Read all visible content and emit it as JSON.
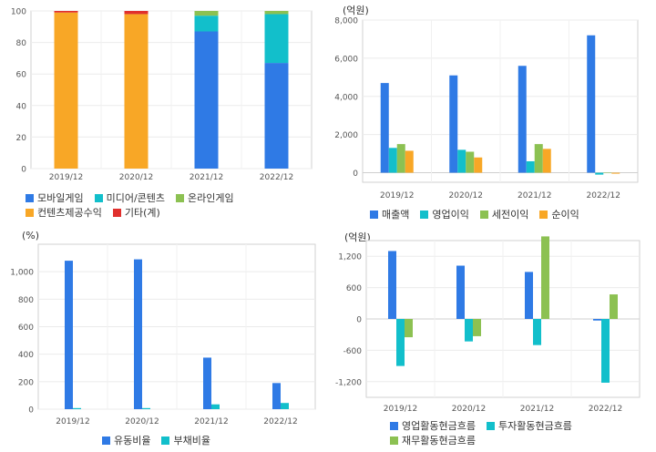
{
  "colors": {
    "blue": "#2f7ae5",
    "cyan": "#12bfcb",
    "green": "#8cc152",
    "orange": "#f8a726",
    "red": "#e0302d"
  },
  "chart_data": [
    {
      "id": "chart1",
      "type": "bar",
      "stacked": true,
      "unit": "",
      "categories": [
        "2019/12",
        "2020/12",
        "2021/12",
        "2022/12"
      ],
      "ylim": [
        0,
        100
      ],
      "yticks": [
        0,
        20,
        40,
        60,
        80,
        100
      ],
      "ytick_labels": [
        "0",
        "20",
        "40",
        "60",
        "80",
        "100"
      ],
      "series": [
        {
          "name": "모바일게임",
          "color": "blue",
          "values": [
            0,
            0,
            87,
            67
          ]
        },
        {
          "name": "미디어/콘텐츠",
          "color": "cyan",
          "values": [
            0,
            0,
            10,
            31
          ]
        },
        {
          "name": "온라인게임",
          "color": "green",
          "values": [
            0,
            0,
            3,
            2
          ]
        },
        {
          "name": "컨텐츠제공수익",
          "color": "orange",
          "values": [
            99,
            98,
            0,
            0
          ]
        },
        {
          "name": "기타(계)",
          "color": "red",
          "values": [
            1,
            2,
            0,
            0
          ]
        }
      ],
      "legend_rows": [
        [
          0,
          1,
          2
        ],
        [
          3,
          4
        ]
      ]
    },
    {
      "id": "chart2",
      "type": "bar",
      "unit": "(억원)",
      "categories": [
        "2019/12",
        "2020/12",
        "2021/12",
        "2022/12"
      ],
      "ylim": [
        -500,
        8000
      ],
      "yticks": [
        0,
        2000,
        4000,
        6000,
        8000
      ],
      "ytick_labels": [
        "0",
        "2,000",
        "4,000",
        "6,000",
        "8,000"
      ],
      "series": [
        {
          "name": "매출액",
          "color": "blue",
          "values": [
            4700,
            5100,
            5600,
            7200
          ]
        },
        {
          "name": "영업이익",
          "color": "cyan",
          "values": [
            1300,
            1200,
            600,
            -100
          ]
        },
        {
          "name": "세전이익",
          "color": "green",
          "values": [
            1500,
            1100,
            1500,
            0
          ]
        },
        {
          "name": "순이익",
          "color": "orange",
          "values": [
            1150,
            800,
            1250,
            -50
          ]
        }
      ],
      "legend_rows": [
        [
          0,
          1,
          2,
          3
        ]
      ]
    },
    {
      "id": "chart3",
      "type": "bar",
      "unit": "(%)",
      "categories": [
        "2019/12",
        "2020/12",
        "2021/12",
        "2022/12"
      ],
      "ylim": [
        0,
        1200
      ],
      "yticks": [
        0,
        200,
        400,
        600,
        800,
        1000
      ],
      "ytick_labels": [
        "0",
        "200",
        "400",
        "600",
        "800",
        "1,000"
      ],
      "series": [
        {
          "name": "유동비율",
          "color": "blue",
          "values": [
            1080,
            1090,
            375,
            190
          ]
        },
        {
          "name": "부채비율",
          "color": "cyan",
          "values": [
            8,
            8,
            35,
            45
          ]
        }
      ],
      "legend_rows": [
        [
          0,
          1
        ]
      ]
    },
    {
      "id": "chart4",
      "type": "bar",
      "unit": "(억원)",
      "categories": [
        "2019/12",
        "2020/12",
        "2021/12",
        "2022/12"
      ],
      "ylim": [
        -1500,
        1500
      ],
      "yticks": [
        -1200,
        -600,
        0,
        600,
        1200
      ],
      "ytick_labels": [
        "-1,200",
        "-600",
        "0",
        "600",
        "1,200"
      ],
      "series": [
        {
          "name": "영업활동현금흐름",
          "color": "blue",
          "values": [
            1300,
            1020,
            900,
            -30
          ]
        },
        {
          "name": "투자활동현금흐름",
          "color": "cyan",
          "values": [
            -900,
            -430,
            -500,
            -1220
          ]
        },
        {
          "name": "재무활동현금흐름",
          "color": "green",
          "values": [
            -350,
            -330,
            1580,
            470
          ]
        }
      ],
      "legend_rows": [
        [
          0,
          1
        ],
        [
          2
        ]
      ]
    }
  ]
}
